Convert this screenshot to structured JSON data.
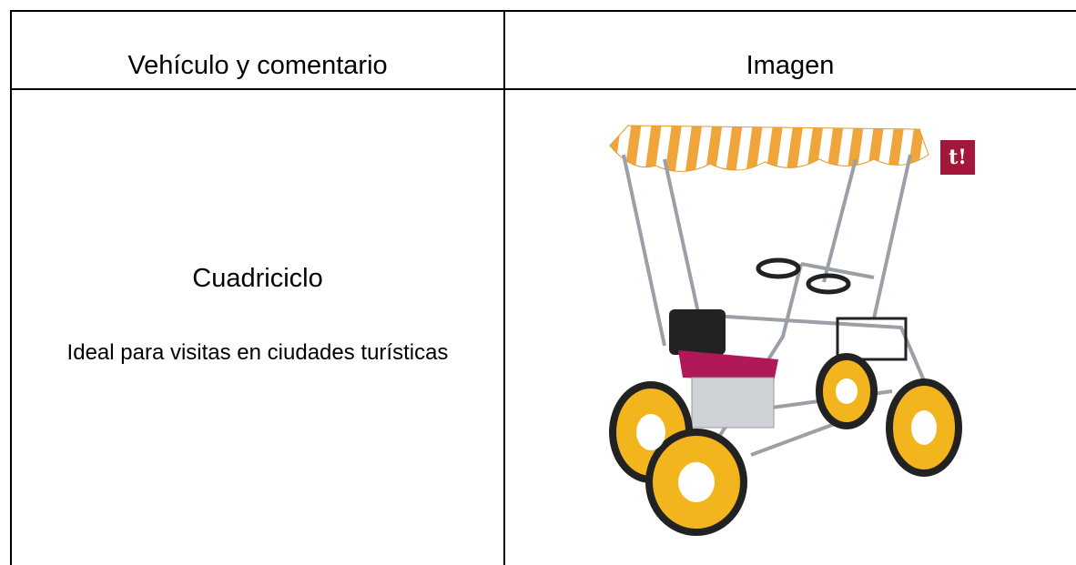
{
  "table": {
    "header": [
      "Vehículo y comentario",
      "Imagen"
    ],
    "rows": [
      [
        {
          "name": "Cuadriciclo",
          "comment": "Ideal para visitas en ciudades turísticas"
        },
        {
          "logo": "t!"
        }
      ]
    ]
  }
}
